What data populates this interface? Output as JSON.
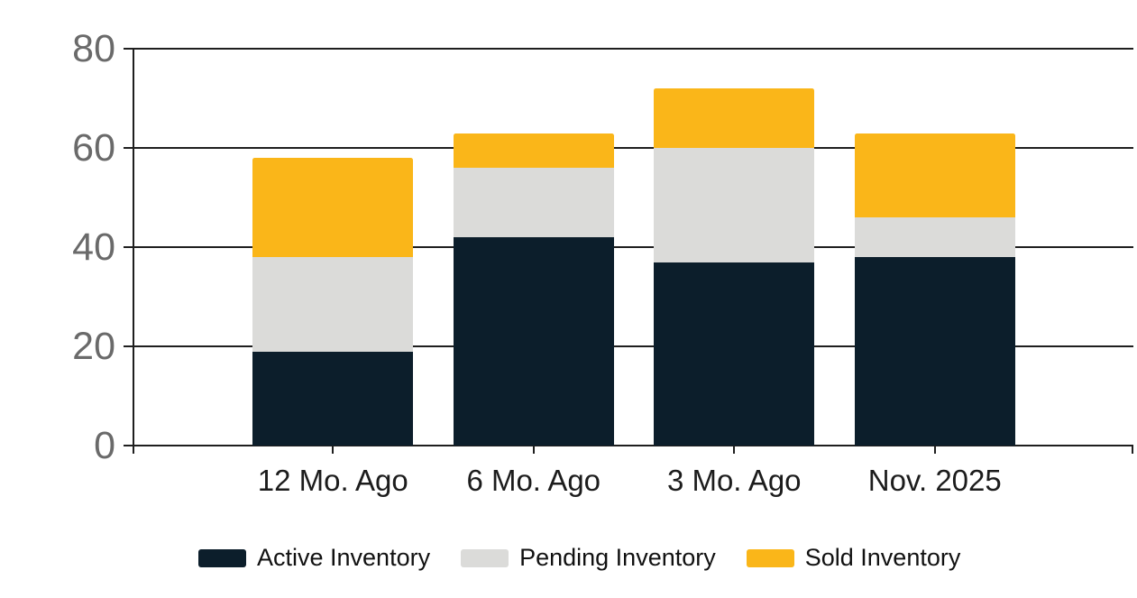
{
  "chart_data": {
    "type": "bar",
    "stacked": true,
    "title": "",
    "categories": [
      "12 Mo. Ago",
      "6 Mo. Ago",
      "3 Mo. Ago",
      "Nov. 2025"
    ],
    "series": [
      {
        "name": "Active Inventory",
        "color": "#0c1e2b",
        "values": [
          19,
          42,
          37,
          38
        ]
      },
      {
        "name": "Pending Inventory",
        "color": "#dbdbd9",
        "values": [
          19,
          14,
          23,
          8
        ]
      },
      {
        "name": "Sold Inventory",
        "color": "#fab619",
        "values": [
          20,
          7,
          12,
          17
        ]
      }
    ],
    "stack_totals": [
      58,
      63,
      72,
      63
    ],
    "y_axis": {
      "range": [
        0,
        80
      ],
      "ticks": [
        0,
        20,
        40,
        60,
        80
      ]
    },
    "xlabel": "",
    "ylabel": "",
    "grid": true,
    "legend_position": "bottom"
  },
  "colors": {
    "background": "#ffffff",
    "axis_line": "#1f1f1f",
    "gridline": "#1f1f1f",
    "y_label_text": "#6a6a6a",
    "x_label_text": "#1c1c1c",
    "legend_text": "#111111"
  }
}
